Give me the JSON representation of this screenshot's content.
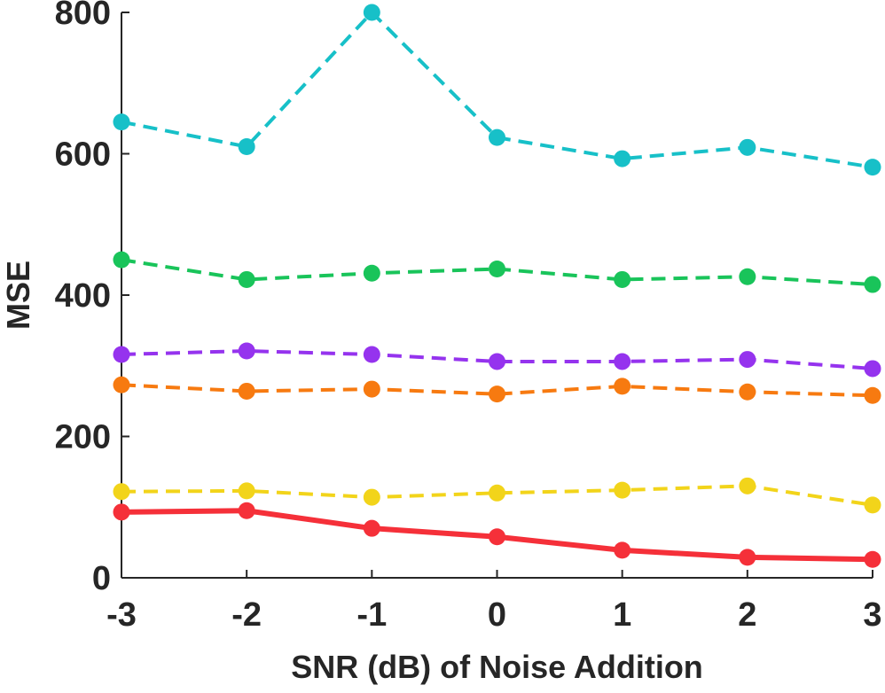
{
  "chart_data": {
    "type": "line",
    "title": "",
    "xlabel": "SNR (dB) of Noise Addition",
    "ylabel": "MSE",
    "x": [
      -3,
      -2,
      -1,
      0,
      1,
      2,
      3
    ],
    "xlim": [
      -3,
      3
    ],
    "ylim": [
      0,
      800
    ],
    "xticks": [
      "-3",
      "-2",
      "-1",
      "0",
      "1",
      "2",
      "3"
    ],
    "yticks": [
      "0",
      "200",
      "400",
      "600",
      "800"
    ],
    "grid": false,
    "legend": "none",
    "series": [
      {
        "name": "cyan",
        "color": "#17c0c8",
        "style": "dashed",
        "values": [
          645,
          610,
          800,
          623,
          593,
          609,
          581
        ]
      },
      {
        "name": "green",
        "color": "#19c45a",
        "style": "dashed",
        "values": [
          450,
          422,
          431,
          437,
          422,
          426,
          415
        ]
      },
      {
        "name": "purple",
        "color": "#9533ee",
        "style": "dashed",
        "values": [
          316,
          321,
          316,
          306,
          306,
          309,
          296
        ]
      },
      {
        "name": "orange",
        "color": "#f77a10",
        "style": "dashed",
        "values": [
          273,
          264,
          267,
          260,
          271,
          263,
          258
        ]
      },
      {
        "name": "yellow",
        "color": "#f2d41a",
        "style": "dashed",
        "values": [
          122,
          123,
          114,
          120,
          124,
          130,
          103
        ]
      },
      {
        "name": "red",
        "color": "#f53039",
        "style": "solid",
        "values": [
          93,
          95,
          70,
          58,
          39,
          29,
          26
        ]
      }
    ]
  }
}
